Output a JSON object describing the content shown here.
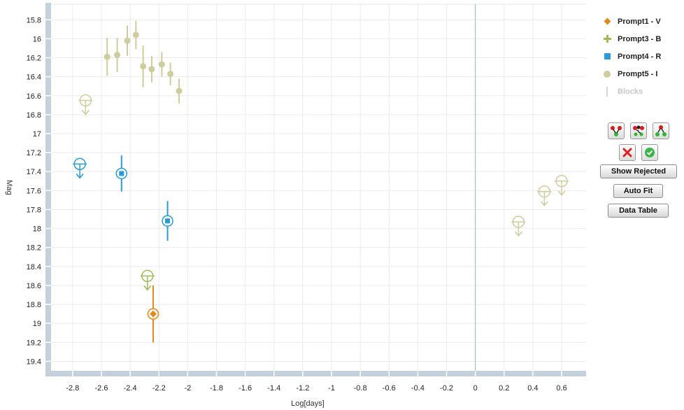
{
  "chart_data": {
    "type": "scatter",
    "xlabel": "Log[days]",
    "ylabel": "Mag",
    "xlim": [
      -2.95,
      0.77
    ],
    "ylim": [
      15.68,
      19.5
    ],
    "y_inverted": true,
    "x_ticks": [
      "-2.8",
      "-2.6",
      "-2.4",
      "-2.2",
      "-2",
      "-1.8",
      "-1.6",
      "-1.4",
      "-1.2",
      "-1",
      "-0.8",
      "-0.6",
      "-0.4",
      "-0.2",
      "0",
      "0.2",
      "0.4",
      "0.6"
    ],
    "x_tick_values": [
      -2.8,
      -2.6,
      -2.4,
      -2.2,
      -2,
      -1.8,
      -1.6,
      -1.4,
      -1.2,
      -1,
      -0.8,
      -0.6,
      -0.4,
      -0.2,
      0,
      0.2,
      0.4,
      0.6
    ],
    "y_ticks": [
      "15.8",
      "16",
      "16.2",
      "16.4",
      "16.6",
      "16.8",
      "17",
      "17.2",
      "17.4",
      "17.6",
      "17.8",
      "18",
      "18.2",
      "18.4",
      "18.6",
      "18.8",
      "19",
      "19.2",
      "19.4"
    ],
    "y_tick_values": [
      15.8,
      16,
      16.2,
      16.4,
      16.6,
      16.8,
      17,
      17.2,
      17.4,
      17.6,
      17.8,
      18,
      18.2,
      18.4,
      18.6,
      18.8,
      19,
      19.2,
      19.4
    ],
    "vertical_line_x": 0,
    "grid": true,
    "series": [
      {
        "name": "Prompt1 - V",
        "color": "#e08a1e",
        "marker": "diamond",
        "points": [
          {
            "x": -2.24,
            "y": 18.9,
            "err": 0.3,
            "circled": true
          }
        ],
        "upper_limits": []
      },
      {
        "name": "Prompt3 - B",
        "color": "#9dbb5a",
        "marker": "plus",
        "points": [],
        "upper_limits": [
          {
            "x": -2.28,
            "y": 18.5
          }
        ]
      },
      {
        "name": "Prompt4 - R",
        "color": "#2b9ad6",
        "marker": "square",
        "points": [
          {
            "x": -2.46,
            "y": 17.42,
            "err": 0.19,
            "circled": true
          },
          {
            "x": -2.14,
            "y": 17.92,
            "err": 0.21,
            "circled": true
          }
        ],
        "upper_limits": [
          {
            "x": -2.75,
            "y": 17.32
          }
        ]
      },
      {
        "name": "Prompt5 - I",
        "color": "#cfcd9e",
        "marker": "circle",
        "points": [
          {
            "x": -2.56,
            "y": 16.19,
            "err": 0.2
          },
          {
            "x": -2.49,
            "y": 16.17,
            "err": 0.18
          },
          {
            "x": -2.42,
            "y": 16.02,
            "err": 0.16
          },
          {
            "x": -2.36,
            "y": 15.96,
            "err": 0.15
          },
          {
            "x": -2.31,
            "y": 16.29,
            "err": 0.22
          },
          {
            "x": -2.25,
            "y": 16.32,
            "err": 0.14
          },
          {
            "x": -2.18,
            "y": 16.27,
            "err": 0.13
          },
          {
            "x": -2.12,
            "y": 16.37,
            "err": 0.12
          },
          {
            "x": -2.06,
            "y": 16.55,
            "err": 0.13
          }
        ],
        "upper_limits": [
          {
            "x": -2.71,
            "y": 16.65
          },
          {
            "x": 0.3,
            "y": 17.93
          },
          {
            "x": 0.48,
            "y": 17.61
          },
          {
            "x": 0.6,
            "y": 17.5
          }
        ]
      }
    ]
  },
  "legend": {
    "items": [
      {
        "label": "Prompt1 - V",
        "marker": "diamond",
        "color": "#e08a1e"
      },
      {
        "label": "Prompt3 - B",
        "marker": "plus",
        "color": "#9dbb5a"
      },
      {
        "label": "Prompt4 - R",
        "marker": "square",
        "color": "#2b9ad6"
      },
      {
        "label": "Prompt5 - I",
        "marker": "circle",
        "color": "#cfcd9e"
      },
      {
        "label": "Blocks",
        "marker": "bar",
        "color": "#d6d6d6"
      }
    ]
  },
  "tools": {
    "icons": [
      "split-points-icon",
      "shuffle-points-icon",
      "merge-points-icon"
    ],
    "reject_icon": "red-x-icon",
    "accept_icon": "green-check-icon"
  },
  "buttons": {
    "show_rejected": "Show Rejected",
    "auto_fit": "Auto Fit",
    "data_table": "Data Table"
  }
}
